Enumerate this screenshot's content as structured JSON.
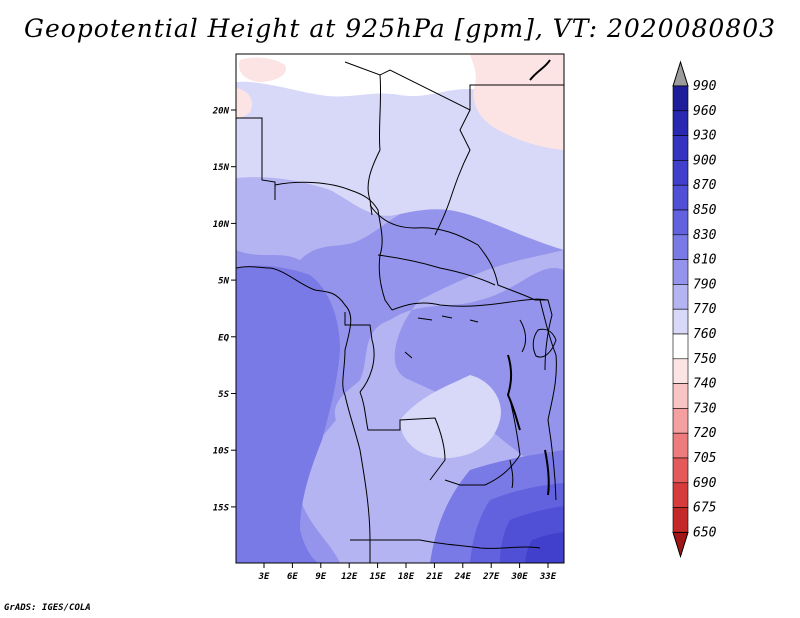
{
  "title": "Geopotential Height at 925hPa [gpm], VT: 2020080803",
  "credit": "GrADS: IGES/COLA",
  "map": {
    "lat_labels": [
      "20N",
      "15N",
      "10N",
      "5N",
      "EQ",
      "5S",
      "10S",
      "15S"
    ],
    "lon_labels": [
      "3E",
      "6E",
      "9E",
      "12E",
      "15E",
      "18E",
      "21E",
      "24E",
      "27E",
      "30E",
      "33E"
    ],
    "variable": "Geopotential Height",
    "level": "925hPa",
    "units": "gpm"
  },
  "colorbar": {
    "levels": [
      "990",
      "960",
      "930",
      "900",
      "870",
      "850",
      "830",
      "810",
      "790",
      "770",
      "760",
      "750",
      "740",
      "730",
      "720",
      "705",
      "690",
      "675",
      "650"
    ],
    "colors": [
      "#1e1e9a",
      "#2828b0",
      "#3434c0",
      "#4040cc",
      "#5050d6",
      "#6262de",
      "#7a7ae6",
      "#9494ec",
      "#b4b4f2",
      "#d8d8f8",
      "#ffffff",
      "#fde4e4",
      "#f9c4c4",
      "#f4a0a0",
      "#ee7c7c",
      "#e45a5a",
      "#d63c3c",
      "#c42828",
      "#aa1a1a"
    ],
    "top_arrow_color": "#9c9c9c",
    "bottom_arrow_color": "#a01616"
  },
  "field_colors": {
    "c810": "#9494ec",
    "c790": "#b4b4f2",
    "c770": "#d8d8f8",
    "c760": "#ffffff",
    "c750": "#fde4e4",
    "c830": "#7a7ae6",
    "c850": "#6262de",
    "c870": "#5050d6",
    "c900": "#4040cc"
  }
}
